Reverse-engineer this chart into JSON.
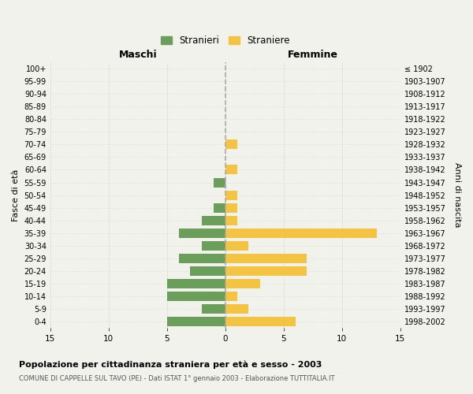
{
  "age_groups": [
    "0-4",
    "5-9",
    "10-14",
    "15-19",
    "20-24",
    "25-29",
    "30-34",
    "35-39",
    "40-44",
    "45-49",
    "50-54",
    "55-59",
    "60-64",
    "65-69",
    "70-74",
    "75-79",
    "80-84",
    "85-89",
    "90-94",
    "95-99",
    "100+"
  ],
  "birth_years": [
    "1998-2002",
    "1993-1997",
    "1988-1992",
    "1983-1987",
    "1978-1982",
    "1973-1977",
    "1968-1972",
    "1963-1967",
    "1958-1962",
    "1953-1957",
    "1948-1952",
    "1943-1947",
    "1938-1942",
    "1933-1937",
    "1928-1932",
    "1923-1927",
    "1918-1922",
    "1913-1917",
    "1908-1912",
    "1903-1907",
    "≤ 1902"
  ],
  "males": [
    5,
    2,
    5,
    5,
    3,
    4,
    2,
    4,
    2,
    1,
    0,
    1,
    0,
    0,
    0,
    0,
    0,
    0,
    0,
    0,
    0
  ],
  "females": [
    6,
    2,
    1,
    3,
    7,
    7,
    2,
    13,
    1,
    1,
    1,
    0,
    1,
    0,
    1,
    0,
    0,
    0,
    0,
    0,
    0
  ],
  "male_color": "#6a9e5a",
  "female_color": "#f5c342",
  "xlim": 15,
  "title": "Popolazione per cittadinanza straniera per età e sesso - 2003",
  "subtitle": "COMUNE DI CAPPELLE SUL TAVO (PE) - Dati ISTAT 1° gennaio 2003 - Elaborazione TUTTITALIA.IT",
  "legend_male": "Stranieri",
  "legend_female": "Straniere",
  "xlabel_left": "Maschi",
  "xlabel_right": "Femmine",
  "ylabel_left": "Fasce di età",
  "ylabel_right": "Anni di nascita",
  "background_color": "#f2f2ed",
  "grid_color": "#cccccc",
  "dashed_line_color": "#aaaaaa"
}
